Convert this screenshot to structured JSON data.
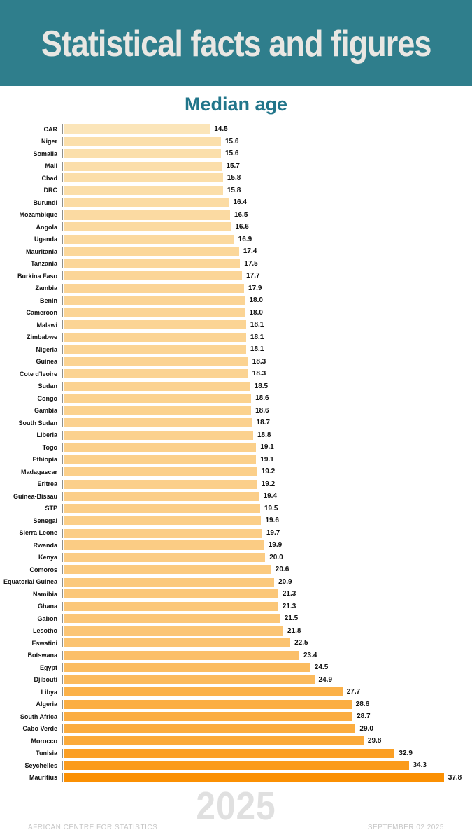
{
  "header": {
    "title": "Statistical facts and figures",
    "bg_color": "#2F7E8C",
    "text_color": "#E9E7E3"
  },
  "subtitle": "Median age",
  "chart_data": {
    "type": "bar",
    "orientation": "horizontal",
    "title": "Median age",
    "xlabel": "",
    "ylabel": "",
    "xlim": [
      0,
      40.6
    ],
    "grid": false,
    "sort": "ascending",
    "categories": [
      "CAR",
      "Niger",
      "Somalia",
      "Mali",
      "Chad",
      "DRC",
      "Burundi",
      "Mozambique",
      "Angola",
      "Uganda",
      "Mauritania",
      "Tanzania",
      "Burkina Faso",
      "Zambia",
      "Benin",
      "Cameroon",
      "Malawi",
      "Zimbabwe",
      "Nigeria",
      "Guinea",
      "Cote d'Ivoire",
      "Sudan",
      "Congo",
      "Gambia",
      "South Sudan",
      "Liberia",
      "Togo",
      "Ethiopia",
      "Madagascar",
      "Eritrea",
      "Guinea-Bissau",
      "STP",
      "Senegal",
      "Sierra Leone",
      "Rwanda",
      "Kenya",
      "Comoros",
      "Equatorial Guinea",
      "Namibia",
      "Ghana",
      "Gabon",
      "Lesotho",
      "Eswatini",
      "Botswana",
      "Egypt",
      "Djibouti",
      "Libya",
      "Algeria",
      "South Africa",
      "Cabo Verde",
      "Morocco",
      "Tunisia",
      "Seychelles",
      "Mauritius"
    ],
    "values": [
      14.5,
      15.6,
      15.6,
      15.7,
      15.8,
      15.8,
      16.4,
      16.5,
      16.6,
      16.9,
      17.4,
      17.5,
      17.7,
      17.9,
      18.0,
      18.0,
      18.1,
      18.1,
      18.1,
      18.3,
      18.3,
      18.5,
      18.6,
      18.6,
      18.7,
      18.8,
      19.1,
      19.1,
      19.2,
      19.2,
      19.4,
      19.5,
      19.6,
      19.7,
      19.9,
      20.0,
      20.6,
      20.9,
      21.3,
      21.3,
      21.5,
      21.8,
      22.5,
      23.4,
      24.5,
      24.9,
      27.7,
      28.6,
      28.7,
      29.0,
      29.8,
      32.9,
      34.3,
      37.8
    ],
    "color_scale": {
      "min_value": 14.5,
      "max_value": 37.8,
      "start_color": "#FBE5B9",
      "end_color": "#FB9003",
      "gamma": 0.85
    },
    "spine_color": "#8F8F8A"
  },
  "footer": {
    "year": "2025",
    "left": "AFRICAN CENTRE FOR STATISTICS",
    "right": "SEPTEMBER 02 2025",
    "text_color": "#C6C6C6",
    "year_color": "#E0E0E0"
  }
}
